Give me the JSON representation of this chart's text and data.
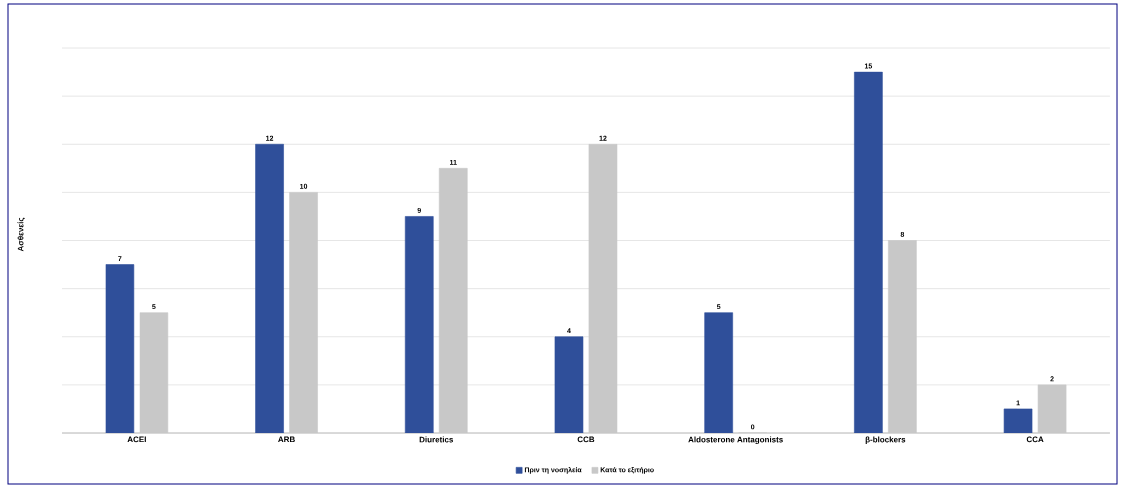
{
  "chart_data": {
    "type": "bar",
    "ylabel": "Ασθενείς",
    "categories": [
      "ACEI",
      "ARB",
      "Diuretics",
      "CCB",
      "Aldosterone Antagonists",
      "β-blockers",
      "CCA"
    ],
    "series": [
      {
        "name": "Πριν τη νοσηλεία",
        "color": "#2f4f9a",
        "values": [
          7,
          12,
          9,
          4,
          5,
          15,
          1
        ]
      },
      {
        "name": "Κατά το εξιτήριο",
        "color": "#c8c8c8",
        "values": [
          5,
          10,
          11,
          12,
          0,
          8,
          2
        ]
      }
    ],
    "tick_labels": "x",
    "grid": "y",
    "legend": "bottom",
    "data_labels": true
  }
}
